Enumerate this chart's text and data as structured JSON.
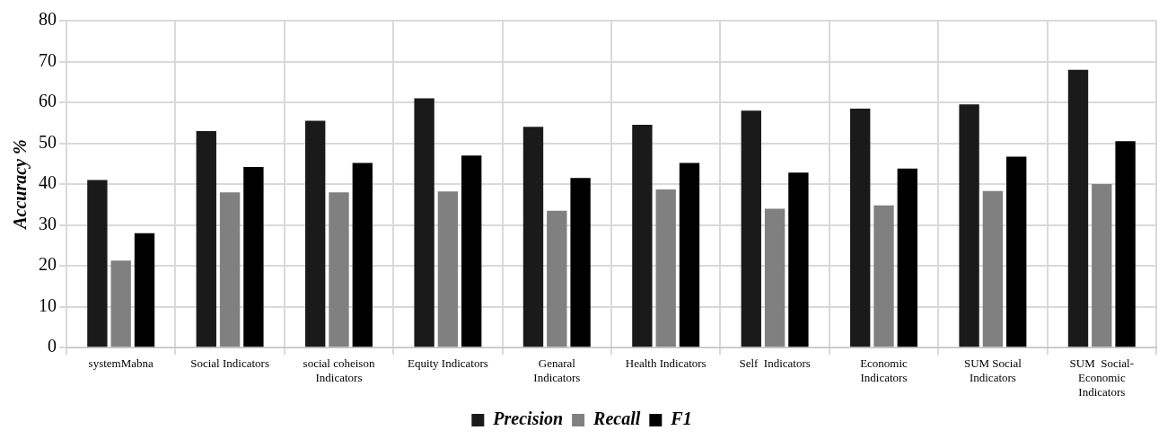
{
  "chart_data": {
    "type": "bar",
    "ylabel": "Accuracy %",
    "categories": [
      "systemMabna",
      "Social Indicators",
      "social coheison Indicators",
      "Equity Indicators",
      "Genaral Indicators",
      "Health Indicators",
      "Self  Indicators",
      "Economic Indicators",
      "SUM Social Indicators",
      "SUM  Social-Economic Indicators"
    ],
    "series": [
      {
        "name": "Precision",
        "color": "#1a1a1a",
        "values": [
          41,
          53,
          55.5,
          61,
          54,
          54.5,
          58,
          58.5,
          59.5,
          68
        ]
      },
      {
        "name": "Recall",
        "color": "#808080",
        "values": [
          21.3,
          38,
          38,
          38.2,
          33.5,
          38.7,
          34,
          34.8,
          38.3,
          40
        ]
      },
      {
        "name": "F1",
        "color": "#000000",
        "values": [
          28,
          44.2,
          45.2,
          47,
          41.5,
          45.2,
          42.8,
          43.8,
          46.7,
          50.5
        ]
      }
    ],
    "ylim": [
      0,
      80
    ],
    "yticks": [
      0,
      10,
      20,
      30,
      40,
      50,
      60,
      70,
      80
    ],
    "grid": true,
    "legend": "bottom"
  }
}
